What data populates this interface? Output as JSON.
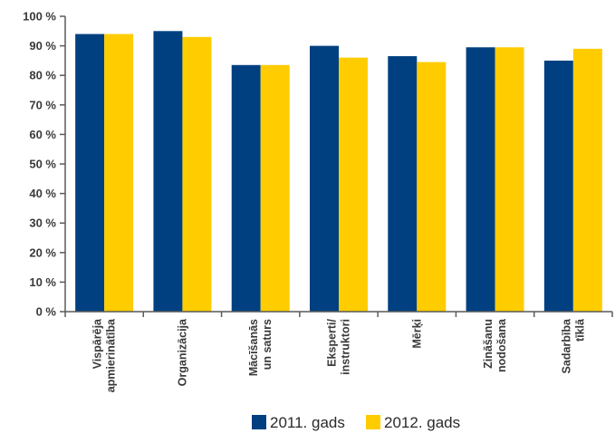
{
  "chart_data": {
    "type": "bar",
    "categories": [
      [
        "Vispārēja",
        "apmierinātība"
      ],
      [
        "Organizācija"
      ],
      [
        "Mācīšanās",
        "un saturs"
      ],
      [
        "Eksperti/",
        "instruktori"
      ],
      [
        "Mērķi"
      ],
      [
        "Zināšanu",
        "nodošana"
      ],
      [
        "Sadarbība",
        "tīklā"
      ]
    ],
    "series": [
      {
        "name": "2011. gads",
        "color": "#004080",
        "values": [
          94,
          95,
          83.5,
          90,
          86.5,
          89.5,
          85
        ]
      },
      {
        "name": "2012. gads",
        "color": "#ffcc00",
        "values": [
          94,
          93,
          83.5,
          86,
          84.5,
          89.5,
          89
        ]
      }
    ],
    "yticks": [
      "0 %",
      "10 %",
      "20 %",
      "30 %",
      "40 %",
      "50 %",
      "60 %",
      "70 %",
      "80 %",
      "90 %",
      "100 %"
    ],
    "ylim": [
      0,
      100
    ],
    "grid": false,
    "legend_position": "bottom"
  }
}
